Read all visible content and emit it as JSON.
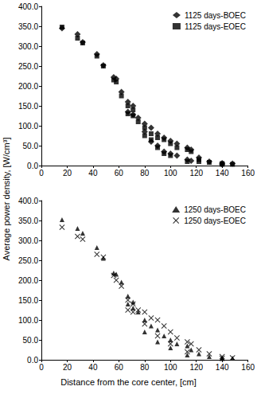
{
  "chart_data": [
    {
      "type": "scatter",
      "ylabel": "Average power density, [W/cm³]",
      "series": [
        {
          "name": "1125 days-BOEC",
          "color": "#000000",
          "marker": "diamond",
          "x": [
            16,
            28,
            32,
            43,
            48,
            56,
            58,
            62,
            67,
            71,
            75,
            80,
            85,
            90,
            95,
            100,
            105,
            113,
            116,
            122,
            130,
            140,
            148,
            67,
            71,
            80,
            85,
            90,
            95,
            100,
            105,
            113,
            116,
            140
          ],
          "values": [
            345,
            330,
            310,
            280,
            252,
            222,
            218,
            185,
            160,
            150,
            120,
            105,
            95,
            80,
            70,
            62,
            55,
            45,
            40,
            20,
            10,
            6,
            5,
            135,
            128,
            85,
            60,
            50,
            35,
            30,
            25,
            15,
            12,
            3
          ]
        },
        {
          "name": "1125 days-EOEC",
          "color": "#000000",
          "marker": "square",
          "x": [
            16,
            28,
            32,
            43,
            48,
            56,
            58,
            62,
            67,
            71,
            75,
            80,
            85,
            90,
            95,
            100,
            105,
            113,
            116,
            122,
            130,
            140,
            148,
            67,
            71,
            80,
            85,
            90,
            95,
            100,
            113,
            122,
            140
          ],
          "values": [
            348,
            320,
            308,
            275,
            250,
            215,
            210,
            175,
            150,
            140,
            110,
            95,
            80,
            70,
            65,
            55,
            45,
            40,
            35,
            15,
            8,
            5,
            3,
            130,
            125,
            75,
            65,
            45,
            30,
            25,
            10,
            10,
            3
          ]
        }
      ],
      "xlim": [
        0,
        160
      ],
      "xticks": [
        0,
        20,
        40,
        60,
        80,
        100,
        120,
        140,
        160
      ],
      "ylim": [
        0,
        400
      ],
      "yticks": [
        {
          "value": 0,
          "label": "0.0"
        },
        {
          "value": 50,
          "label": "50.0"
        },
        {
          "value": 100,
          "label": "100.0"
        },
        {
          "value": 150,
          "label": "150.0"
        },
        {
          "value": 200,
          "label": "200.0"
        },
        {
          "value": 250,
          "label": "250.0"
        },
        {
          "value": 300,
          "label": "300.0"
        },
        {
          "value": 350,
          "label": "350.0"
        },
        {
          "value": 400,
          "label": "400.0"
        }
      ],
      "grid": false,
      "legend": "upper right"
    },
    {
      "type": "scatter",
      "xlabel": "Distance from the core center, [cm]",
      "series": [
        {
          "name": "1250 days-BOEC",
          "color": "#000000",
          "marker": "triangle",
          "x": [
            16,
            28,
            32,
            43,
            48,
            56,
            58,
            62,
            67,
            71,
            75,
            80,
            85,
            90,
            95,
            100,
            105,
            113,
            116,
            122,
            130,
            140,
            148,
            67,
            71,
            80,
            90,
            100,
            113,
            140
          ],
          "values": [
            352,
            330,
            318,
            282,
            255,
            218,
            215,
            195,
            160,
            145,
            120,
            100,
            85,
            75,
            60,
            50,
            40,
            35,
            25,
            15,
            8,
            5,
            4,
            140,
            130,
            70,
            45,
            30,
            12,
            3
          ]
        },
        {
          "name": "1250 days-EOEC",
          "color": "#000000",
          "marker": "cross",
          "x": [
            16,
            28,
            32,
            43,
            48,
            56,
            58,
            62,
            67,
            71,
            75,
            80,
            85,
            90,
            95,
            100,
            105,
            113,
            116,
            122,
            130,
            140,
            148,
            67,
            71,
            80,
            90,
            100,
            113,
            140
          ],
          "values": [
            333,
            310,
            303,
            265,
            258,
            212,
            200,
            185,
            150,
            140,
            125,
            120,
            105,
            100,
            85,
            70,
            55,
            45,
            40,
            25,
            15,
            8,
            5,
            125,
            120,
            90,
            60,
            40,
            20,
            4
          ]
        }
      ],
      "xlim": [
        0,
        160
      ],
      "xticks": [
        0,
        20,
        40,
        60,
        80,
        100,
        120,
        140,
        160
      ],
      "ylim": [
        0,
        400
      ],
      "yticks": [
        {
          "value": 0,
          "label": "0.0"
        },
        {
          "value": 50,
          "label": "50.0"
        },
        {
          "value": 100,
          "label": "100.0"
        },
        {
          "value": 150,
          "label": "150.0"
        },
        {
          "value": 200,
          "label": "200.0"
        },
        {
          "value": 250,
          "label": "250.0"
        },
        {
          "value": 300,
          "label": "300.0"
        },
        {
          "value": 350,
          "label": "350.0"
        },
        {
          "value": 400,
          "label": "400.0"
        }
      ],
      "grid": false,
      "legend": "upper right"
    }
  ]
}
